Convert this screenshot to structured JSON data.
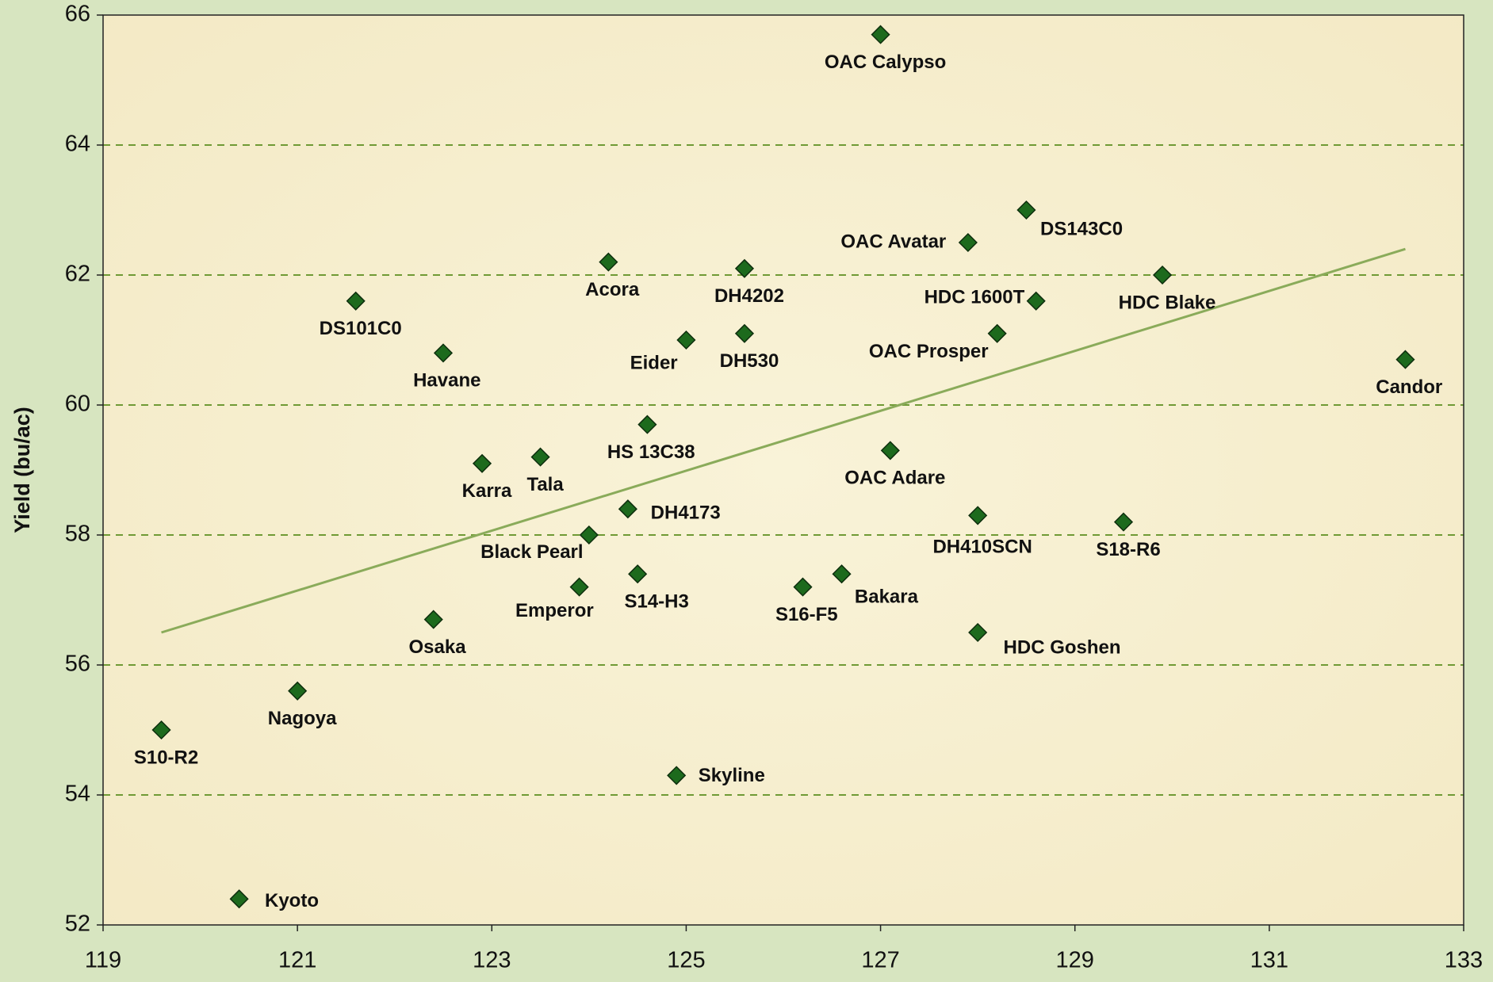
{
  "chart_data": {
    "type": "scatter",
    "y_label": "Yield (bu/ac)",
    "xlim": [
      119,
      133
    ],
    "xticks": [
      119,
      121,
      123,
      125,
      127,
      129,
      131,
      133
    ],
    "ylim": [
      52,
      66
    ],
    "yticks": [
      52,
      54,
      56,
      58,
      60,
      62,
      64,
      66
    ],
    "grid": true,
    "color": "#1d6a1d",
    "trendline_color": "#8aab5a",
    "labels": [
      "S10-R2",
      "Kyoto",
      "Nagoya",
      "DS101C0",
      "Osaka",
      "Havane",
      "Karra",
      "Tala",
      "Emperor",
      "Black Pearl",
      "Acora",
      "DH4173",
      "S14-H3",
      "HS 13C38",
      "Skyline",
      "Eider",
      "DH4202",
      "DH530",
      "S16-F5",
      "Bakara",
      "OAC Calypso",
      "OAC Adare",
      "OAC Avatar",
      "DH410SCN",
      "HDC Goshen",
      "OAC Prosper",
      "DS143C0",
      "HDC 1600T",
      "S18-R6",
      "HDC Blake",
      "Candor"
    ],
    "x": [
      119.6,
      120.4,
      121.0,
      121.6,
      122.4,
      122.5,
      122.9,
      123.5,
      123.9,
      124.0,
      124.2,
      124.4,
      124.5,
      124.6,
      124.9,
      125.0,
      125.6,
      125.6,
      126.2,
      126.6,
      127.0,
      127.1,
      127.9,
      128.0,
      128.0,
      128.2,
      128.5,
      128.6,
      129.5,
      129.9,
      132.4
    ],
    "values": [
      55.0,
      52.4,
      55.6,
      61.6,
      56.7,
      60.8,
      59.1,
      59.2,
      57.2,
      58.0,
      62.2,
      58.4,
      57.4,
      59.7,
      54.3,
      61.0,
      62.1,
      61.1,
      57.2,
      57.4,
      65.7,
      59.3,
      62.5,
      58.3,
      56.5,
      61.1,
      63.0,
      61.6,
      58.2,
      62.0,
      60.7
    ],
    "trendline": {
      "x": [
        119.6,
        132.4
      ],
      "y": [
        56.5,
        62.4
      ]
    }
  }
}
